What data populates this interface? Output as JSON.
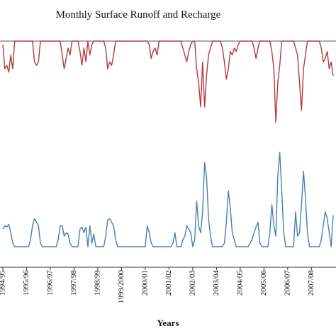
{
  "chart_data": {
    "type": "line",
    "title": "Monthly Surface Runoff and Recharge",
    "xlabel": "Years",
    "categories": [
      "1994/95",
      null,
      null,
      null,
      null,
      null,
      null,
      null,
      null,
      null,
      null,
      null,
      "1995/96",
      null,
      null,
      null,
      null,
      null,
      null,
      null,
      null,
      null,
      null,
      null,
      "1996/97",
      null,
      null,
      null,
      null,
      null,
      null,
      null,
      null,
      null,
      null,
      null,
      "1997/98",
      null,
      null,
      null,
      null,
      null,
      null,
      null,
      null,
      null,
      null,
      null,
      "1998/99",
      null,
      null,
      null,
      null,
      null,
      null,
      null,
      null,
      null,
      null,
      null,
      "1999/2000",
      null,
      null,
      null,
      null,
      null,
      null,
      null,
      null,
      null,
      null,
      null,
      "2000/01",
      null,
      null,
      null,
      null,
      null,
      null,
      null,
      null,
      null,
      null,
      null,
      "2001/02",
      null,
      null,
      null,
      null,
      null,
      null,
      null,
      null,
      null,
      null,
      null,
      "2002/03",
      null,
      null,
      null,
      null,
      null,
      null,
      null,
      null,
      null,
      null,
      null,
      "2003/04",
      null,
      null,
      null,
      null,
      null,
      null,
      null,
      null,
      null,
      null,
      null,
      "2004/05",
      null,
      null,
      null,
      null,
      null,
      null,
      null,
      null,
      null,
      null,
      null,
      "2005/06",
      null,
      null,
      null,
      null,
      null,
      null,
      null,
      null,
      null,
      null,
      null,
      "2006/07",
      null,
      null,
      null,
      null,
      null,
      null,
      null,
      null,
      null,
      null,
      null,
      "2007/08",
      null,
      null,
      null,
      null,
      null,
      null,
      null,
      null,
      null,
      null,
      null
    ],
    "series": [
      {
        "color": "#b5393c",
        "axis": "y2",
        "values": [
          -5,
          -40,
          -35,
          -45,
          -20,
          -40,
          0,
          0,
          0,
          0,
          0,
          0,
          0,
          0,
          0,
          0,
          -30,
          -35,
          -30,
          0,
          0,
          0,
          0,
          0,
          0,
          0,
          0,
          0,
          0,
          0,
          -20,
          -40,
          -25,
          -10,
          -20,
          0,
          0,
          0,
          0,
          -15,
          -35,
          -10,
          -30,
          0,
          -20,
          -5,
          0,
          0,
          0,
          0,
          0,
          0,
          -10,
          -40,
          -30,
          -35,
          -20,
          0,
          0,
          0,
          0,
          0,
          0,
          0,
          0,
          0,
          0,
          0,
          0,
          0,
          0,
          0,
          0,
          0,
          -5,
          -25,
          -15,
          -10,
          -20,
          0,
          0,
          0,
          0,
          0,
          0,
          0,
          0,
          0,
          0,
          0,
          0,
          -10,
          -20,
          -30,
          -15,
          -5,
          0,
          0,
          -40,
          -60,
          -95,
          -30,
          -95,
          -50,
          -20,
          -10,
          0,
          0,
          0,
          0,
          0,
          -10,
          -30,
          -55,
          -40,
          -15,
          -20,
          -10,
          -15,
          -5,
          0,
          0,
          0,
          0,
          0,
          0,
          0,
          -10,
          -25,
          -10,
          0,
          0,
          0,
          0,
          0,
          0,
          -15,
          -40,
          -117,
          -60,
          -35,
          0,
          0,
          0,
          0,
          0,
          0,
          0,
          -10,
          -20,
          -60,
          -100,
          -40,
          -20,
          0,
          0,
          0,
          0,
          0,
          0,
          0,
          -10,
          -30,
          -25,
          -15,
          -40,
          -30,
          -50
        ]
      },
      {
        "color": "#4a7fb0",
        "values": [
          25,
          30,
          28,
          32,
          20,
          5,
          0,
          0,
          0,
          0,
          0,
          0,
          0,
          0,
          10,
          30,
          40,
          35,
          30,
          5,
          0,
          0,
          0,
          0,
          0,
          0,
          0,
          0,
          10,
          30,
          30,
          15,
          20,
          18,
          5,
          0,
          0,
          0,
          0,
          25,
          28,
          20,
          28,
          0,
          30,
          5,
          18,
          0,
          0,
          0,
          0,
          0,
          15,
          38,
          40,
          35,
          30,
          10,
          0,
          0,
          0,
          0,
          0,
          0,
          0,
          0,
          0,
          0,
          0,
          0,
          0,
          0,
          0,
          30,
          20,
          5,
          0,
          0,
          0,
          0,
          0,
          0,
          0,
          0,
          0,
          0,
          5,
          20,
          0,
          0,
          0,
          10,
          15,
          30,
          25,
          20,
          0,
          10,
          65,
          30,
          20,
          50,
          120,
          100,
          40,
          15,
          0,
          0,
          0,
          0,
          0,
          0,
          5,
          35,
          80,
          55,
          20,
          10,
          0,
          0,
          0,
          0,
          0,
          0,
          0,
          5,
          10,
          20,
          28,
          35,
          5,
          0,
          0,
          0,
          0,
          20,
          60,
          30,
          15,
          100,
          135,
          80,
          20,
          0,
          0,
          0,
          0,
          0,
          50,
          15,
          20,
          60,
          108,
          70,
          20,
          0,
          0,
          0,
          0,
          0,
          0,
          10,
          30,
          50,
          40,
          20,
          0,
          45
        ]
      }
    ],
    "ylim": [
      0,
      150
    ],
    "y2lim": [
      -130,
      0
    ]
  }
}
